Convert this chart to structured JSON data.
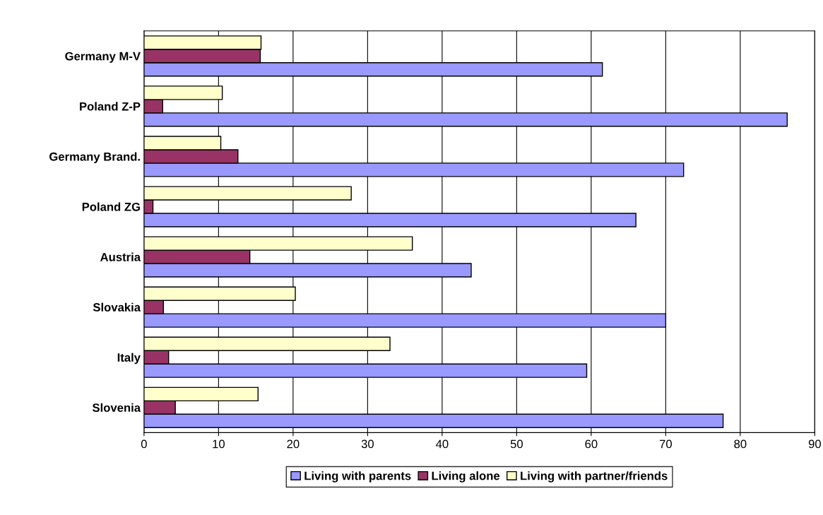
{
  "chart_data": {
    "type": "bar",
    "orientation": "horizontal",
    "categories": [
      "Germany M-V",
      "Poland Z-P",
      "Germany Brand.",
      "Poland ZG",
      "Austria",
      "Slovakia",
      "Italy",
      "Slovenia"
    ],
    "series": [
      {
        "name": "Living with parents",
        "color": "#9999ff",
        "values": [
          61.5,
          86.3,
          72.4,
          66,
          43.9,
          70,
          59.4,
          77.7
        ]
      },
      {
        "name": "Living alone",
        "color": "#993366",
        "values": [
          15.6,
          2.5,
          12.6,
          1.2,
          14.2,
          2.6,
          3.3,
          4.2
        ]
      },
      {
        "name": "Living with partner/friends",
        "color": "#ffffcc",
        "values": [
          15.7,
          10.5,
          10.3,
          27.8,
          36,
          20.3,
          33,
          15.3
        ]
      }
    ],
    "xlim": [
      0,
      90
    ],
    "xticks": [
      0,
      10,
      20,
      30,
      40,
      50,
      60,
      70,
      80,
      90
    ],
    "grid": "x",
    "legend": "bottom"
  }
}
